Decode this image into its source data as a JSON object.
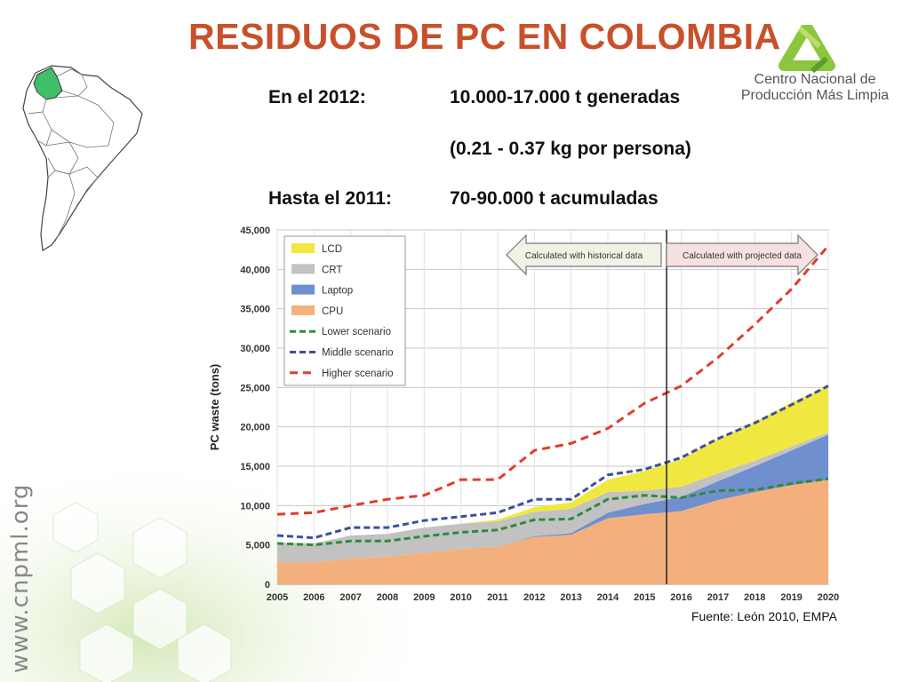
{
  "slide": {
    "title": "RESIDUOS DE PC EN COLOMBIA",
    "logo": {
      "line1": "Centro Nacional de",
      "line2": "Producción Más Limpia"
    },
    "info": [
      {
        "label": "En el 2012:",
        "value": "10.000-17.000 t generadas"
      },
      {
        "label": "",
        "value": "(0.21 - 0.37 kg por persona)"
      },
      {
        "label": "Hasta el 2011:",
        "value": "70-90.000 t acumuladas"
      }
    ],
    "website": "www.cnpml.org",
    "source": "Fuente: León 2010, EMPA",
    "colors": {
      "title": "#c8502a",
      "map_highlight": "#3fbf6a",
      "logo_green": "#8cc63f"
    }
  },
  "chart_data": {
    "type": "area",
    "ylabel": "PC waste (tons)",
    "xlabel": "",
    "ylim": [
      0,
      45000
    ],
    "yticks": [
      0,
      5000,
      10000,
      15000,
      20000,
      25000,
      30000,
      35000,
      40000,
      45000
    ],
    "ytick_labels": [
      "0",
      "5,000",
      "10,000",
      "15,000",
      "20,000",
      "25,000",
      "30,000",
      "35,000",
      "40,000",
      "45,000"
    ],
    "x": [
      "2005",
      "2006",
      "2007",
      "2008",
      "2009",
      "2010",
      "2011",
      "2012",
      "2013",
      "2014",
      "2015",
      "2016",
      "2017",
      "2018",
      "2019",
      "2020"
    ],
    "grid": true,
    "legend_position": "top-left",
    "divider_x": 2015.6,
    "annotations": [
      {
        "text": "Calculated with historical data",
        "direction": "left"
      },
      {
        "text": "Calculated with projected data",
        "direction": "right"
      }
    ],
    "stacked_series": [
      {
        "name": "CPU",
        "color": "#f4b07c",
        "values": [
          2800,
          2800,
          3300,
          3500,
          4000,
          4500,
          4800,
          6000,
          6300,
          8400,
          8900,
          9300,
          10700,
          11700,
          12600,
          13300
        ]
      },
      {
        "name": "Laptop",
        "color": "#6f8fcf",
        "values": [
          0,
          0,
          0,
          0,
          0,
          0,
          0,
          100,
          200,
          700,
          1300,
          1800,
          2400,
          3300,
          4400,
          5700
        ]
      },
      {
        "name": "CRT",
        "color": "#c2c2c2",
        "values": [
          2500,
          2400,
          2900,
          2900,
          3200,
          3200,
          3200,
          3100,
          3100,
          2600,
          1700,
          1300,
          1000,
          700,
          500,
          300
        ]
      },
      {
        "name": "LCD",
        "color": "#f0e840",
        "values": [
          0,
          0,
          0,
          0,
          0,
          0,
          200,
          600,
          800,
          1600,
          2500,
          3500,
          4400,
          4900,
          5600,
          5900
        ]
      }
    ],
    "line_series": [
      {
        "name": "Lower scenario",
        "color": "#2e8b3a",
        "dash": "7,4",
        "values": [
          5200,
          5000,
          5500,
          5500,
          6100,
          6600,
          6900,
          8200,
          8300,
          10800,
          11300,
          11000,
          11900,
          12000,
          12800,
          13400
        ]
      },
      {
        "name": "Middle scenario",
        "color": "#3b4fa0",
        "dash": "7,4",
        "values": [
          6200,
          5900,
          7200,
          7200,
          8100,
          8600,
          9100,
          10800,
          10800,
          13900,
          14600,
          16100,
          18500,
          20500,
          22800,
          25200
        ]
      },
      {
        "name": "Higher scenario",
        "color": "#e03c2c",
        "dash": "9,6",
        "values": [
          8900,
          9100,
          10000,
          10800,
          11300,
          13300,
          13300,
          17000,
          17900,
          19800,
          23000,
          25200,
          28800,
          33000,
          37500,
          43000
        ]
      }
    ]
  }
}
